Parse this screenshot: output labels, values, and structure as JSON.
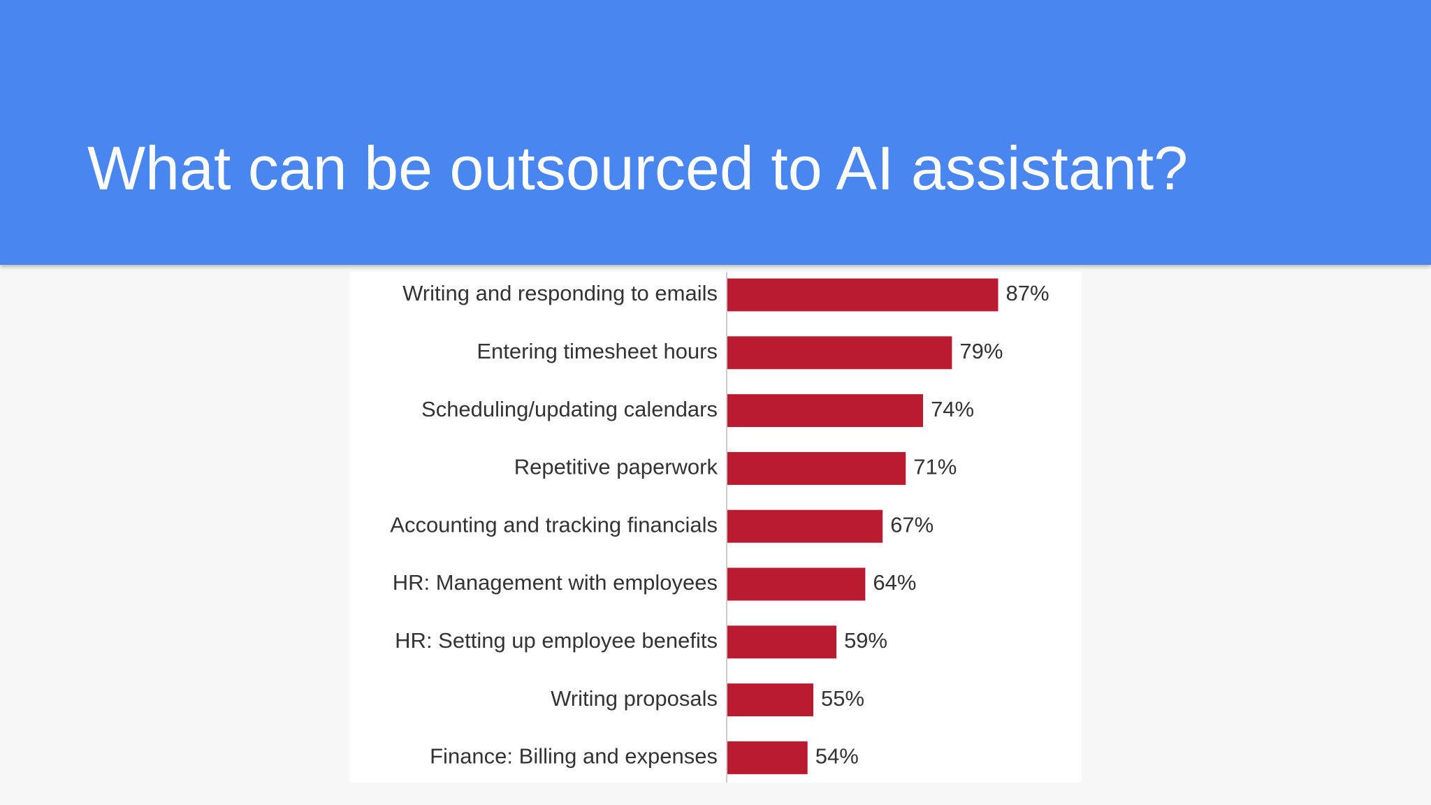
{
  "chart_data": {
    "type": "bar",
    "orientation": "horizontal",
    "title": "What can be outsourced to AI assistant?",
    "categories": [
      "Writing and responding to emails",
      "Entering timesheet hours",
      "Scheduling/updating calendars",
      "Repetitive paperwork",
      "Accounting and tracking financials",
      "HR: Management with employees",
      "HR: Setting up employee benefits",
      "Writing proposals",
      "Finance: Billing and expenses"
    ],
    "values": [
      87,
      79,
      74,
      71,
      67,
      64,
      59,
      55,
      54
    ],
    "value_labels": [
      "87%",
      "79%",
      "74%",
      "71%",
      "67%",
      "64%",
      "59%",
      "55%",
      "54%"
    ],
    "color": "#b91c30",
    "xlim": [
      40,
      100
    ]
  }
}
